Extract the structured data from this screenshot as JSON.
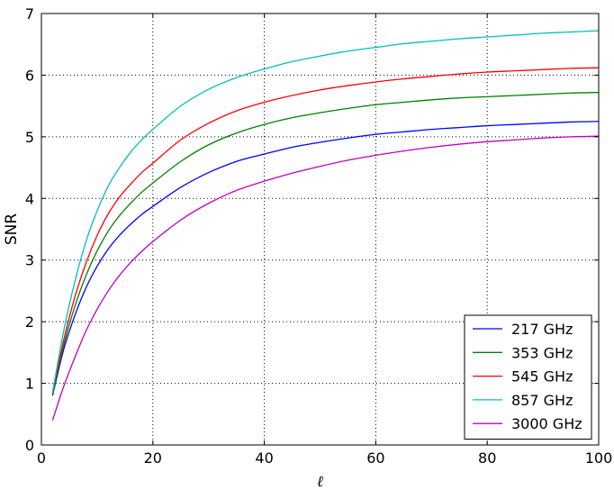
{
  "chart_data": {
    "type": "line",
    "title": "",
    "xlabel": "ℓ",
    "ylabel": "SNR",
    "xlim": [
      0,
      100
    ],
    "ylim": [
      0,
      7
    ],
    "xticks": [
      "0",
      "20",
      "40",
      "60",
      "80",
      "100"
    ],
    "yticks": [
      "0",
      "1",
      "2",
      "3",
      "4",
      "5",
      "6",
      "7"
    ],
    "grid": true,
    "legend_position": "lower-right",
    "x": [
      2,
      4,
      6,
      8,
      10,
      12,
      14,
      16,
      18,
      20,
      25,
      30,
      35,
      40,
      45,
      50,
      55,
      60,
      65,
      70,
      75,
      80,
      85,
      90,
      95,
      100
    ],
    "series": [
      {
        "name": "217 GHz",
        "color": "#0000ff",
        "values": [
          0.8,
          1.55,
          2.1,
          2.55,
          2.9,
          3.18,
          3.4,
          3.58,
          3.74,
          3.87,
          4.18,
          4.42,
          4.6,
          4.72,
          4.83,
          4.91,
          4.98,
          5.04,
          5.08,
          5.12,
          5.15,
          5.18,
          5.2,
          5.22,
          5.24,
          5.25
        ]
      },
      {
        "name": "353 GHz",
        "color": "#008000",
        "values": [
          0.82,
          1.62,
          2.25,
          2.75,
          3.15,
          3.47,
          3.72,
          3.92,
          4.1,
          4.25,
          4.6,
          4.87,
          5.06,
          5.2,
          5.31,
          5.39,
          5.46,
          5.52,
          5.56,
          5.6,
          5.63,
          5.65,
          5.67,
          5.69,
          5.71,
          5.72
        ]
      },
      {
        "name": "545 GHz",
        "color": "#ff0000",
        "values": [
          0.84,
          1.7,
          2.4,
          2.95,
          3.4,
          3.75,
          4.02,
          4.23,
          4.42,
          4.57,
          4.95,
          5.22,
          5.42,
          5.56,
          5.67,
          5.76,
          5.83,
          5.89,
          5.94,
          5.98,
          6.02,
          6.05,
          6.07,
          6.09,
          6.11,
          6.12
        ]
      },
      {
        "name": "857 GHz",
        "color": "#00bfbf",
        "values": [
          0.85,
          1.85,
          2.65,
          3.3,
          3.8,
          4.2,
          4.5,
          4.75,
          4.95,
          5.12,
          5.5,
          5.77,
          5.96,
          6.1,
          6.22,
          6.31,
          6.39,
          6.45,
          6.51,
          6.55,
          6.59,
          6.62,
          6.65,
          6.68,
          6.7,
          6.72
        ]
      },
      {
        "name": "3000 GHz",
        "color": "#bf00bf",
        "values": [
          0.4,
          0.95,
          1.42,
          1.85,
          2.2,
          2.5,
          2.75,
          2.96,
          3.14,
          3.3,
          3.65,
          3.92,
          4.13,
          4.28,
          4.41,
          4.52,
          4.62,
          4.7,
          4.77,
          4.83,
          4.88,
          4.92,
          4.95,
          4.98,
          5.0,
          5.01
        ]
      }
    ]
  }
}
